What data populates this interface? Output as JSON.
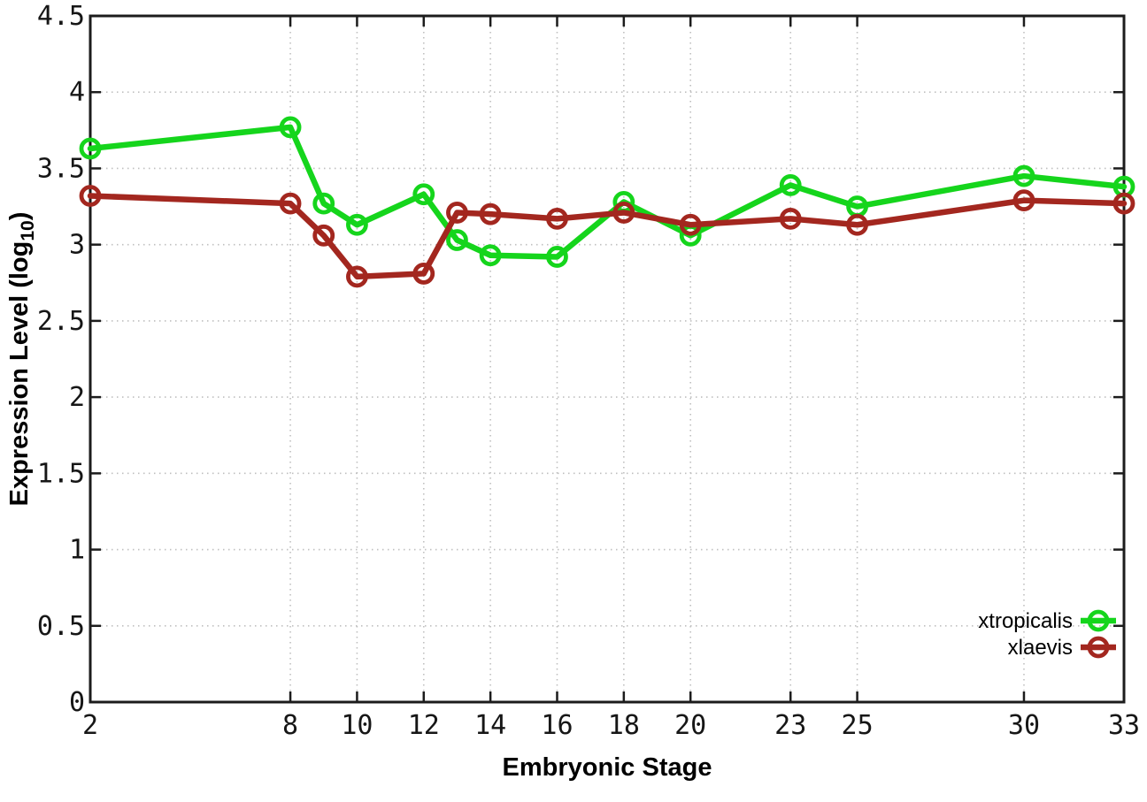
{
  "chart_data": {
    "type": "line",
    "title": "",
    "xlabel": "Embryonic Stage",
    "ylabel_prefix": "Expression Level (log",
    "ylabel_sub": "10",
    "ylabel_suffix": ")",
    "xlabel_full": "Embryonic Stage",
    "ylabel_full": "Expression Level (log10)",
    "x": [
      2,
      8,
      9,
      10,
      12,
      13,
      14,
      16,
      18,
      20,
      23,
      25,
      30,
      33
    ],
    "series": [
      {
        "name": "xtropicalis",
        "color": "#15d51c",
        "values": [
          3.63,
          3.77,
          3.27,
          3.13,
          3.33,
          3.03,
          2.93,
          2.92,
          3.28,
          3.06,
          3.39,
          3.25,
          3.45,
          3.38
        ]
      },
      {
        "name": "xlaevis",
        "color": "#a3271f",
        "values": [
          3.32,
          3.27,
          3.06,
          2.79,
          2.81,
          3.21,
          3.2,
          3.17,
          3.21,
          3.13,
          3.17,
          3.13,
          3.29,
          3.27
        ]
      }
    ],
    "x_tick_values": [
      2,
      8,
      10,
      12,
      14,
      16,
      18,
      20,
      23,
      25,
      30,
      33
    ],
    "x_tick_labels": [
      "2",
      "8",
      "10",
      "12",
      "14",
      "16",
      "18",
      "20",
      "23",
      "25",
      "30",
      "33"
    ],
    "y_tick_values": [
      0,
      0.5,
      1,
      1.5,
      2,
      2.5,
      3,
      3.5,
      4,
      4.5
    ],
    "y_tick_labels": [
      "0",
      "0.5",
      "1",
      "1.5",
      "2",
      "2.5",
      "3",
      "3.5",
      "4",
      "4.5"
    ],
    "xlim": [
      2,
      33
    ],
    "ylim": [
      0,
      4.5
    ],
    "grid": true,
    "legend_position": "inside-bottom-right",
    "colors": {
      "background": "#ffffff",
      "border": "#1c1c1c",
      "grid": "#bfbfbf",
      "text": "#000000"
    }
  }
}
